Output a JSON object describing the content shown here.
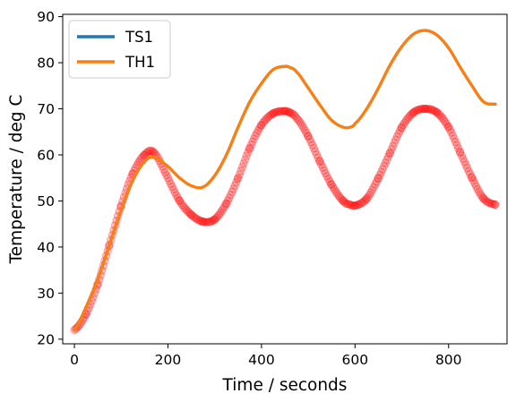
{
  "chart_data": {
    "type": "line",
    "title": "",
    "xlabel": "Time / seconds",
    "ylabel": "Temperature / deg C",
    "xlim": [
      -25,
      925
    ],
    "ylim": [
      19,
      90.5
    ],
    "xticks": [
      0,
      200,
      400,
      600,
      800
    ],
    "yticks": [
      20,
      30,
      40,
      50,
      60,
      70,
      80,
      90
    ],
    "grid": false,
    "legend": {
      "placement": "top-left",
      "entries": [
        "TS1",
        "TH1"
      ]
    },
    "colors": {
      "TS1": "#1f77b4",
      "TH1": "#ff7f0e",
      "measured": "#ff0000"
    },
    "x": [
      0,
      25,
      50,
      75,
      100,
      125,
      150,
      170,
      200,
      225,
      250,
      275,
      300,
      325,
      350,
      375,
      400,
      425,
      450,
      460,
      475,
      500,
      525,
      550,
      575,
      590,
      600,
      625,
      650,
      675,
      700,
      725,
      750,
      775,
      800,
      825,
      850,
      875,
      900
    ],
    "series": [
      {
        "name": "TS1",
        "style": "line",
        "values": [
          22.0,
          27.0,
          33.0,
          40.5,
          48.0,
          54.5,
          58.5,
          59.5,
          57.5,
          55.0,
          53.3,
          53.0,
          55.5,
          60.0,
          66.0,
          71.5,
          75.5,
          78.5,
          79.2,
          79.0,
          78.0,
          74.5,
          70.8,
          67.5,
          66.0,
          66.0,
          66.8,
          70.0,
          74.5,
          79.5,
          83.5,
          86.2,
          87.0,
          86.0,
          83.2,
          79.0,
          75.0,
          71.5,
          71.0
        ]
      },
      {
        "name": "TH1",
        "style": "line",
        "values": [
          22.0,
          27.0,
          33.0,
          40.5,
          48.0,
          54.5,
          58.5,
          59.5,
          57.5,
          55.0,
          53.3,
          53.0,
          55.5,
          60.0,
          66.0,
          71.5,
          75.5,
          78.5,
          79.2,
          79.0,
          78.0,
          74.5,
          70.8,
          67.5,
          66.0,
          66.0,
          66.8,
          70.0,
          74.5,
          79.5,
          83.5,
          86.2,
          87.0,
          86.0,
          83.2,
          79.0,
          75.0,
          71.5,
          71.0
        ]
      },
      {
        "style": "markers",
        "values": [
          22.0,
          25.5,
          32.0,
          40.5,
          49.0,
          56.0,
          60.0,
          60.5,
          55.0,
          50.0,
          47.0,
          45.5,
          46.0,
          49.5,
          55.0,
          61.5,
          66.5,
          69.0,
          69.5,
          69.2,
          68.0,
          64.0,
          58.5,
          53.5,
          50.0,
          49.2,
          49.0,
          50.5,
          55.0,
          60.5,
          66.0,
          69.2,
          70.0,
          69.2,
          66.0,
          60.5,
          55.0,
          50.5,
          49.2
        ]
      }
    ]
  }
}
